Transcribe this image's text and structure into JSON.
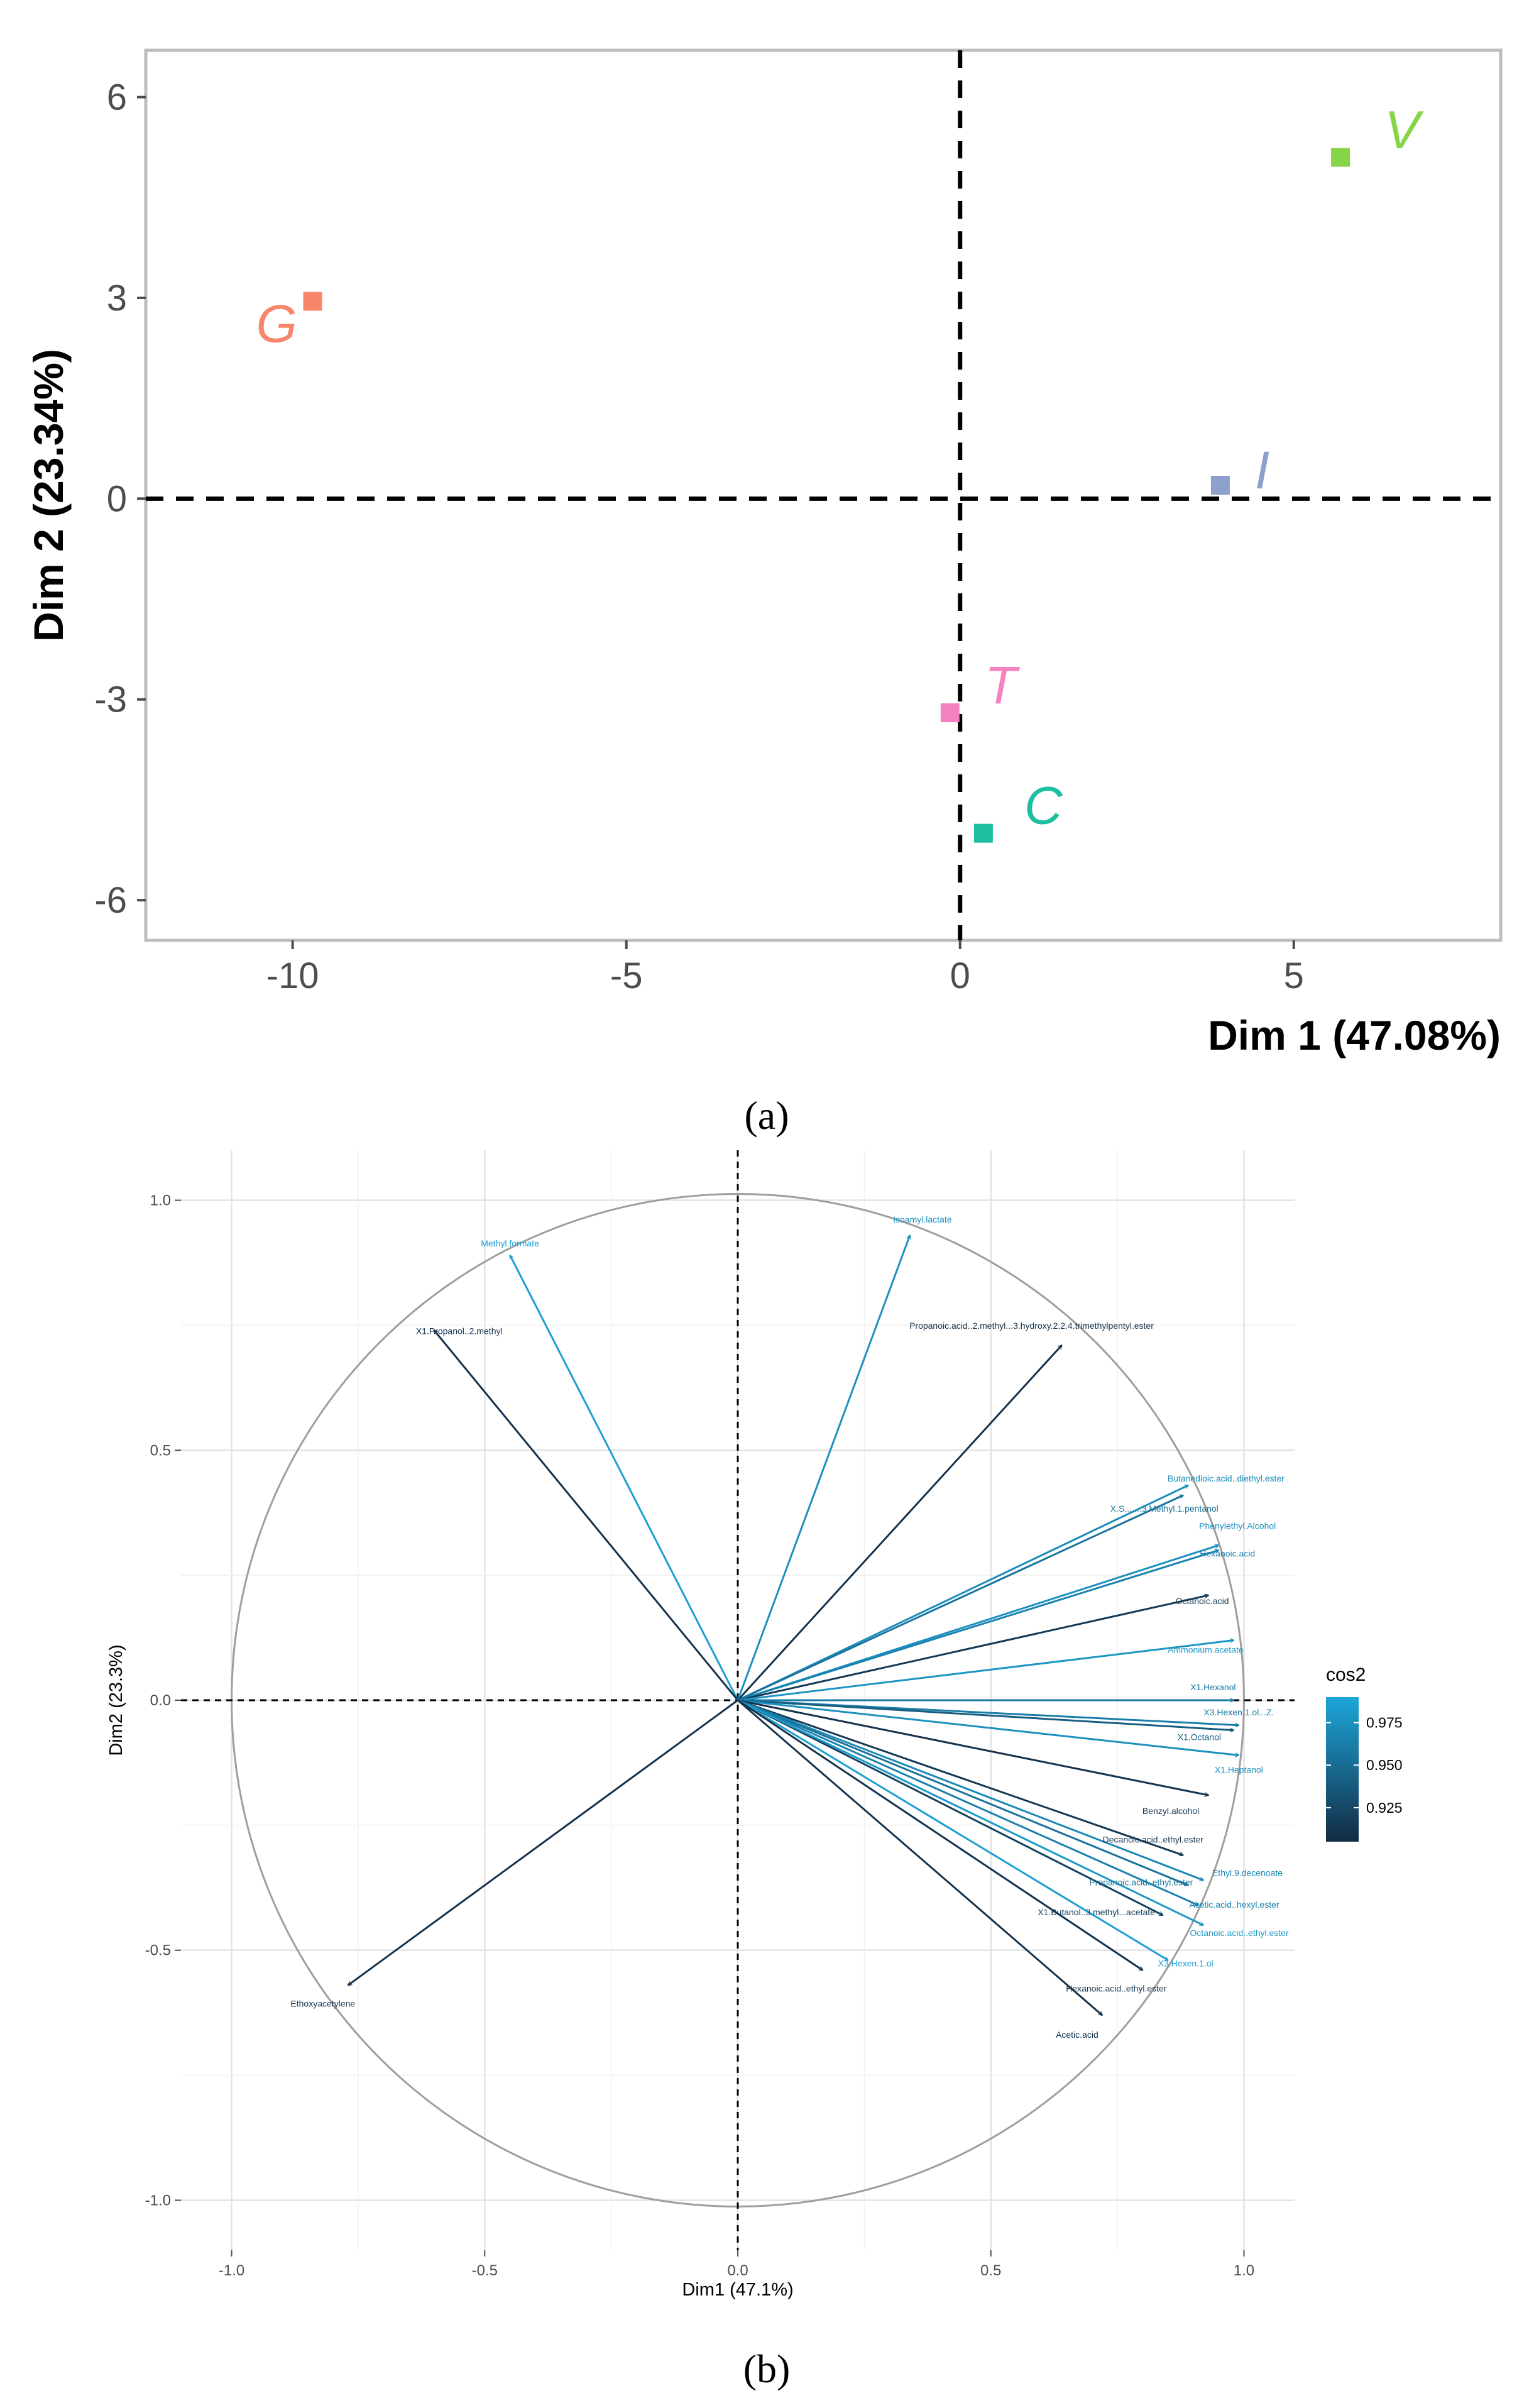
{
  "chart_data": [
    {
      "type": "scatter",
      "caption": "(a)",
      "xlabel": "Dim 1 (47.08%)",
      "ylabel": "Dim 2 (23.34%)",
      "xlim": [
        -12.2,
        8.1
      ],
      "ylim": [
        -6.6,
        6.7
      ],
      "xticks": [
        -10,
        -5,
        0,
        5
      ],
      "yticks": [
        -6,
        -3,
        0,
        3,
        6
      ],
      "points": [
        {
          "label": "G",
          "x": -9.7,
          "y": 2.95,
          "color": "#F8866A"
        },
        {
          "label": "V",
          "x": 5.7,
          "y": 5.1,
          "color": "#86D548"
        },
        {
          "label": "I",
          "x": 3.9,
          "y": 0.2,
          "color": "#8DA0CB"
        },
        {
          "label": "T",
          "x": -0.15,
          "y": -3.2,
          "color": "#F582C0"
        },
        {
          "label": "C",
          "x": 0.35,
          "y": -5.0,
          "color": "#1CBF9F"
        }
      ]
    },
    {
      "type": "scatter",
      "subtype": "pca-variable-correlation-circle",
      "caption": "(b)",
      "xlabel": "Dim1 (47.1%)",
      "ylabel": "Dim2 (23.3%)",
      "xlim": [
        -1.1,
        1.1
      ],
      "ylim": [
        -1.1,
        1.1
      ],
      "xticks": [
        "-1.0",
        "-0.5",
        "0.0",
        "0.5",
        "1.0"
      ],
      "yticks": [
        "-1.0",
        "-0.5",
        "0.0",
        "0.5",
        "1.0"
      ],
      "legend": {
        "title": "cos2",
        "ticks": [
          "0.975",
          "0.950",
          "0.925"
        ],
        "range": [
          0.905,
          0.99
        ],
        "low_color": "#132B43",
        "high_color": "#1DA6DA"
      },
      "variables": [
        {
          "label": "Methyl.formate",
          "x": -0.45,
          "y": 0.89,
          "cos2": 0.985
        },
        {
          "label": "X1.Propanol..2.methyl",
          "x": -0.6,
          "y": 0.74,
          "cos2": 0.91
        },
        {
          "label": "Isoamyl.lactate",
          "x": 0.34,
          "y": 0.93,
          "cos2": 0.975
        },
        {
          "label": "Propanoic.acid..2.methyl...3.hydroxy.2.2.4.trimethylpentyl.ester",
          "x": 0.64,
          "y": 0.71,
          "cos2": 0.91
        },
        {
          "label": "Butanedioic.acid..diethyl.ester",
          "x": 0.89,
          "y": 0.43,
          "cos2": 0.972
        },
        {
          "label": "X.S.......3.Methyl.1.pentanol",
          "x": 0.88,
          "y": 0.41,
          "cos2": 0.955
        },
        {
          "label": "Phenylethyl.Alcohol",
          "x": 0.95,
          "y": 0.31,
          "cos2": 0.975
        },
        {
          "label": "Hexanoic.acid",
          "x": 0.95,
          "y": 0.3,
          "cos2": 0.965
        },
        {
          "label": "Octanoic.acid",
          "x": 0.93,
          "y": 0.21,
          "cos2": 0.915
        },
        {
          "label": "Ammonium.acetate",
          "x": 0.98,
          "y": 0.12,
          "cos2": 0.978
        },
        {
          "label": "X1.Hexanol",
          "x": 0.98,
          "y": 0.0,
          "cos2": 0.96
        },
        {
          "label": "X3.Hexen.1.ol...Z.",
          "x": 0.99,
          "y": -0.05,
          "cos2": 0.962
        },
        {
          "label": "X1.Octanol",
          "x": 0.98,
          "y": -0.06,
          "cos2": 0.94
        },
        {
          "label": "X1.Heptanol",
          "x": 0.99,
          "y": -0.11,
          "cos2": 0.975
        },
        {
          "label": "Benzyl.alcohol",
          "x": 0.93,
          "y": -0.19,
          "cos2": 0.91
        },
        {
          "label": "Decanoic.acid..ethyl.ester",
          "x": 0.88,
          "y": -0.31,
          "cos2": 0.915
        },
        {
          "label": "Ethyl.9.decenoate",
          "x": 0.92,
          "y": -0.36,
          "cos2": 0.97
        },
        {
          "label": "Propanoic.acid..ethyl.ester",
          "x": 0.89,
          "y": -0.37,
          "cos2": 0.955
        },
        {
          "label": "Acetic.acid..hexyl.ester",
          "x": 0.91,
          "y": -0.41,
          "cos2": 0.965
        },
        {
          "label": "X1.Butanol..3.methyl...acetate",
          "x": 0.84,
          "y": -0.43,
          "cos2": 0.92
        },
        {
          "label": "Octanoic.acid..ethyl.ester",
          "x": 0.92,
          "y": -0.45,
          "cos2": 0.98
        },
        {
          "label": "X3.Hexen.1.ol",
          "x": 0.85,
          "y": -0.52,
          "cos2": 0.985
        },
        {
          "label": "Hexanoic.acid..ethyl.ester",
          "x": 0.8,
          "y": -0.54,
          "cos2": 0.91
        },
        {
          "label": "Acetic.acid",
          "x": 0.72,
          "y": -0.63,
          "cos2": 0.91
        },
        {
          "label": "Ethoxyacetylene",
          "x": -0.77,
          "y": -0.57,
          "cos2": 0.91
        }
      ]
    }
  ]
}
